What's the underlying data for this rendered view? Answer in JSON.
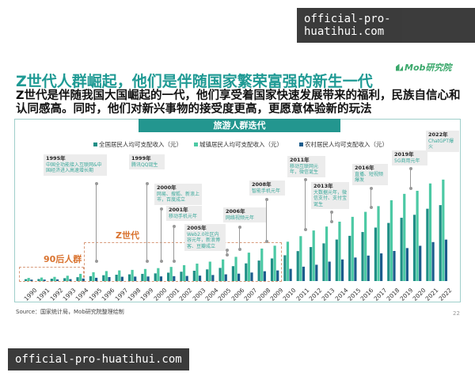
{
  "watermark": "official-pro-huatihui.com",
  "logo": "Mob研究院",
  "title": "Z世代人群崛起，他们是伴随国家繁荣富强的新生一代",
  "subtitle": "Z世代是伴随我国大国崛起的一代，他们享受着国家快速发展带来的福利，民族自信心和认同感高。同时，他们对新兴事物的接受度更高，更愿意体验新的玩法",
  "chart_header": "旅游人群迭代",
  "source": "Source：国家统计局，Mob研究院整理绘制",
  "page_number": "22",
  "groups": {
    "gen90": "90后人群",
    "genz": "Z世代"
  },
  "annotations": [
    {
      "year": "1995年",
      "text": "中国全功能接入互联网&中国经济进入高速增长期"
    },
    {
      "year": "1999年",
      "text": "腾讯QQ诞生"
    },
    {
      "year": "2000年",
      "text": "网易、搜狐、新浪上市，百度成立"
    },
    {
      "year": "2001年",
      "text": "移动手机元年"
    },
    {
      "year": "2005年",
      "text": "Web2.0社区内容元年，新浪博客、豆瓣成立"
    },
    {
      "year": "2006年",
      "text": "网络视频元年"
    },
    {
      "year": "2008年",
      "text": "智能手机元年"
    },
    {
      "year": "2011年",
      "text": "移动互联网元年，微信诞生"
    },
    {
      "year": "2013年",
      "text": "大数据元年，微信支付、支付宝诞生"
    },
    {
      "year": "2016年",
      "text": "直播、短视频爆发"
    },
    {
      "year": "2019年",
      "text": "5G商用元年"
    },
    {
      "year": "2022年",
      "text": "ChatGPT爆火"
    }
  ],
  "chart_data": {
    "type": "bar",
    "title": "旅游人群迭代",
    "categories": [
      "1990",
      "1991",
      "1992",
      "1993",
      "1994",
      "1995",
      "1996",
      "1997",
      "1998",
      "1999",
      "2000",
      "2001",
      "2002",
      "2003",
      "2004",
      "2005",
      "2006",
      "2007",
      "2008",
      "2009",
      "2010",
      "2011",
      "2012",
      "2013",
      "2014",
      "2015",
      "2016",
      "2017",
      "2018",
      "2019",
      "2020",
      "2021",
      "2022"
    ],
    "ylim": [
      0,
      50000
    ],
    "grid": false,
    "legend_position": "top",
    "series": [
      {
        "name": "全国居民人均可支配收入（元）",
        "color": "#1f8f86",
        "values": [
          904,
          976,
          1125,
          1385,
          1870,
          2363,
          2814,
          3070,
          3254,
          3485,
          3721,
          4070,
          4532,
          5007,
          5661,
          6385,
          7229,
          8584,
          9957,
          10977,
          12520,
          14551,
          16510,
          18311,
          20167,
          21966,
          23821,
          25974,
          28228,
          30733,
          32189,
          35128,
          36883
        ]
      },
      {
        "name": "城镇居民人均可支配收入（元）",
        "color": "#4cc9a4",
        "values": [
          1510,
          1701,
          2027,
          2577,
          3496,
          4283,
          4839,
          5160,
          5425,
          5854,
          6280,
          6860,
          7703,
          8472,
          9422,
          10493,
          11759,
          13786,
          15781,
          17175,
          19109,
          21810,
          24565,
          26467,
          28844,
          31195,
          33616,
          36396,
          39251,
          42359,
          43834,
          47412,
          49283
        ]
      },
      {
        "name": "农村居民人均可支配收入（元）",
        "color": "#1b5c8c",
        "values": [
          686,
          709,
          784,
          922,
          1221,
          1578,
          1926,
          2090,
          2162,
          2210,
          2253,
          2366,
          2476,
          2622,
          2936,
          3255,
          3587,
          4140,
          4761,
          5153,
          5919,
          6977,
          7917,
          9430,
          10489,
          11422,
          12363,
          13432,
          14617,
          16021,
          17131,
          18931,
          20133
        ]
      }
    ]
  }
}
